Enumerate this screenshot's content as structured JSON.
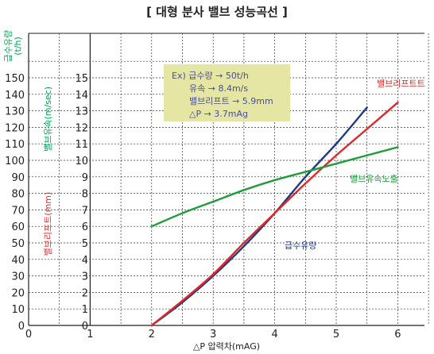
{
  "chart_data": {
    "type": "line",
    "title": "[ 대형 분사 밸브 성능곡선 ]",
    "xlabel": "△P 압력차(mAG)",
    "xlim": [
      0,
      6.5
    ],
    "x_ticks": [
      0,
      1,
      2,
      3,
      4,
      5,
      6
    ],
    "left_axes": [
      {
        "label": "급수유량",
        "unit": "(t/h)",
        "color": "#00a651",
        "ticks": [
          0,
          10,
          20,
          30,
          40,
          50,
          60,
          70,
          80,
          90,
          100,
          110,
          120,
          130,
          140,
          150
        ]
      },
      {
        "label": "밸브유속(m/sec)",
        "color": "#00a651",
        "ticks": [
          0,
          1,
          2,
          3,
          4,
          5,
          6,
          7,
          8,
          9,
          10,
          11,
          12,
          13,
          14,
          15
        ]
      },
      {
        "label": "밸브리프트(mm)",
        "color": "#e03030"
      }
    ],
    "ylim": [
      0,
      160
    ],
    "grid": true,
    "series": [
      {
        "name": "급수유량",
        "color": "#1f3a8a",
        "x": [
          2,
          2.5,
          3,
          3.5,
          4,
          4.5,
          5,
          5.5
        ],
        "y": [
          0,
          14,
          30,
          48,
          68,
          90,
          110,
          132
        ]
      },
      {
        "name": "밸브리프트트",
        "color": "#e02828",
        "x": [
          2,
          2.5,
          3,
          3.5,
          4,
          4.5,
          5,
          5.5,
          6
        ],
        "y": [
          0,
          15,
          31,
          50,
          68,
          86,
          103,
          119,
          135
        ]
      },
      {
        "name": "밸브유속노출",
        "color": "#1e9e3a",
        "x": [
          2,
          2.5,
          3,
          3.5,
          4,
          4.5,
          5,
          5.5,
          6
        ],
        "y": [
          60,
          68,
          75,
          82,
          88,
          93,
          98,
          103,
          108
        ]
      }
    ],
    "annotation": {
      "lines": [
        "Ex) 급수량 → 50t/h",
        "유속 → 8.4m/s",
        "밸브리프트 → 5.9mm",
        "△P →  3.7mAg"
      ],
      "background": "#e5e6a4"
    }
  }
}
